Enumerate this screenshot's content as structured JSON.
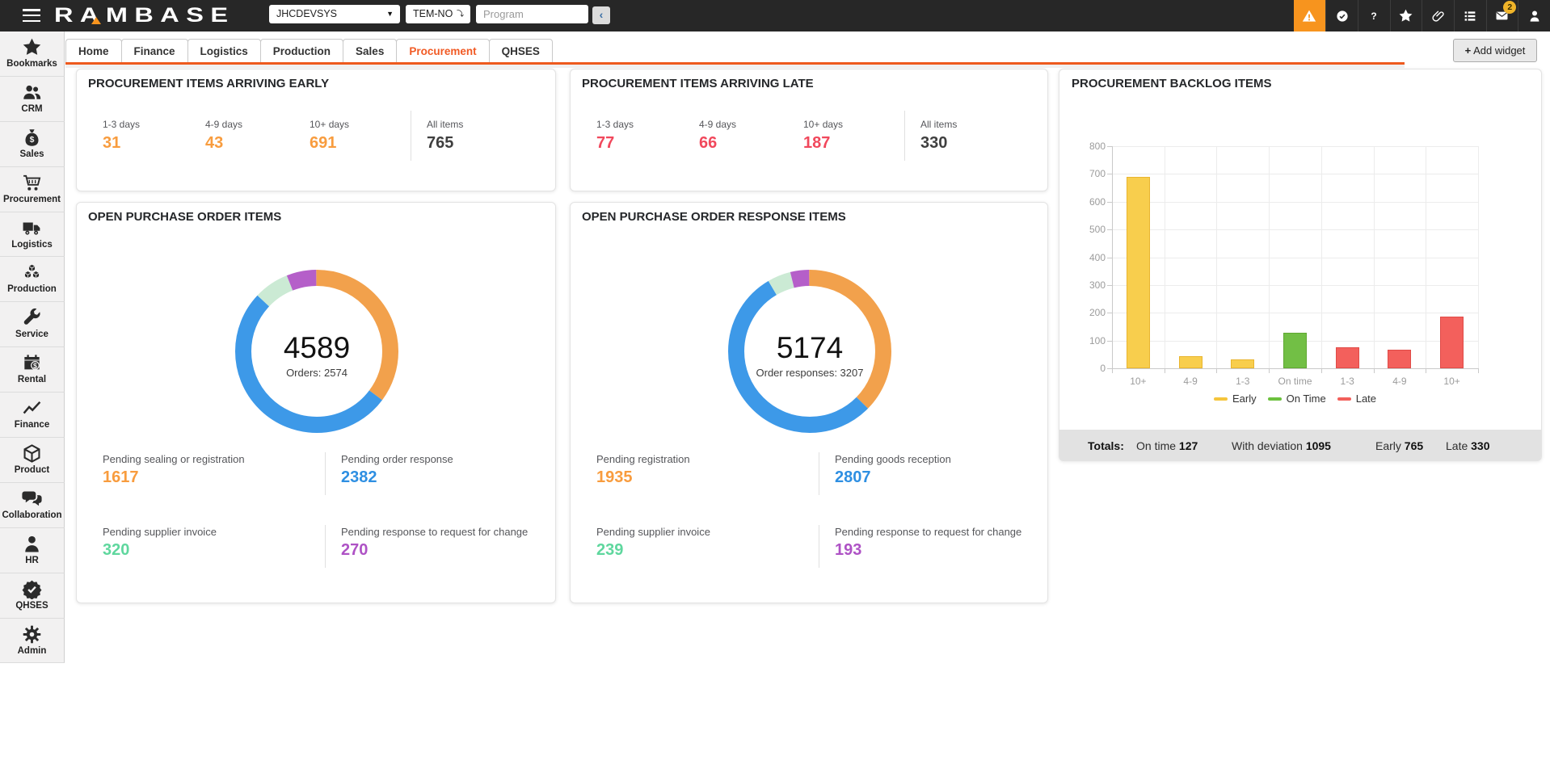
{
  "topbar": {
    "logo": "RAMBASE",
    "system_select": {
      "value": "JHCDEVSYS"
    },
    "db_select": {
      "value": "TEM-NO"
    },
    "program_input": {
      "placeholder": "Program"
    },
    "back_button": "‹",
    "icons": [
      {
        "name": "alert-icon",
        "highlight": true
      },
      {
        "name": "seal-check-icon"
      },
      {
        "name": "help-icon"
      },
      {
        "name": "favorites-icon"
      },
      {
        "name": "attachment-icon"
      },
      {
        "name": "task-list-icon"
      },
      {
        "name": "messages-icon",
        "badge": "2"
      },
      {
        "name": "user-icon"
      }
    ]
  },
  "sidebar": {
    "items": [
      {
        "icon": "star",
        "label": "Bookmarks"
      },
      {
        "icon": "people",
        "label": "CRM"
      },
      {
        "icon": "moneybag",
        "label": "Sales"
      },
      {
        "icon": "cart",
        "label": "Procurement"
      },
      {
        "icon": "truck",
        "label": "Logistics"
      },
      {
        "icon": "cubes",
        "label": "Production"
      },
      {
        "icon": "wrench",
        "label": "Service"
      },
      {
        "icon": "calendar",
        "label": "Rental"
      },
      {
        "icon": "chartline",
        "label": "Finance"
      },
      {
        "icon": "cube",
        "label": "Product"
      },
      {
        "icon": "chat",
        "label": "Collaboration"
      },
      {
        "icon": "person",
        "label": "HR"
      },
      {
        "icon": "badgecheck",
        "label": "QHSES"
      },
      {
        "icon": "gear",
        "label": "Admin"
      }
    ]
  },
  "tabs": {
    "items": [
      "Home",
      "Finance",
      "Logistics",
      "Production",
      "Sales",
      "Procurement",
      "QHSES"
    ],
    "active": "Procurement",
    "add_widget": "Add widget"
  },
  "cards": {
    "early": {
      "title": "PROCUREMENT ITEMS ARRIVING EARLY",
      "stats": [
        {
          "label": "1-3 days",
          "value": "31"
        },
        {
          "label": "4-9 days",
          "value": "43"
        },
        {
          "label": "10+ days",
          "value": "691"
        }
      ],
      "accent": "#f89c3e",
      "all_items": {
        "label": "All items",
        "value": "765"
      }
    },
    "late": {
      "title": "PROCUREMENT ITEMS ARRIVING LATE",
      "stats": [
        {
          "label": "1-3 days",
          "value": "77"
        },
        {
          "label": "4-9 days",
          "value": "66"
        },
        {
          "label": "10+ days",
          "value": "187"
        }
      ],
      "accent": "#f1485c",
      "all_items": {
        "label": "All items",
        "value": "330"
      }
    }
  },
  "chart_data": [
    {
      "type": "pie",
      "title": "OPEN PURCHASE ORDER ITEMS",
      "center_label": "4589",
      "center_sub": "Orders: 2574",
      "slices": [
        {
          "label": "Pending sealing or registration",
          "value": 1617,
          "ring_color": "#f2a14c",
          "text_color": "#f89c3e"
        },
        {
          "label": "Pending order response",
          "value": 2382,
          "ring_color": "#3d99e8",
          "text_color": "#2e8fe2"
        },
        {
          "label": "Pending supplier invoice",
          "value": 320,
          "ring_color": "#cbead4",
          "text_color": "#5fd79e"
        },
        {
          "label": "Pending response to request for change",
          "value": 270,
          "ring_color": "#b55fc9",
          "text_color": "#ae52c5"
        }
      ]
    },
    {
      "type": "pie",
      "title": "OPEN PURCHASE ORDER RESPONSE ITEMS",
      "center_label": "5174",
      "center_sub": "Order responses: 3207",
      "slices": [
        {
          "label": "Pending registration",
          "value": 1935,
          "ring_color": "#f2a14c",
          "text_color": "#f89c3e"
        },
        {
          "label": "Pending goods reception",
          "value": 2807,
          "ring_color": "#3d99e8",
          "text_color": "#2e8fe2"
        },
        {
          "label": "Pending supplier invoice",
          "value": 239,
          "ring_color": "#cbead4",
          "text_color": "#5fd79e"
        },
        {
          "label": "Pending response to request for change",
          "value": 193,
          "ring_color": "#b55fc9",
          "text_color": "#ae52c5"
        }
      ]
    },
    {
      "type": "bar",
      "title": "PROCUREMENT BACKLOG ITEMS",
      "categories": [
        "10+",
        "4-9",
        "1-3",
        "On time",
        "1-3",
        "4-9",
        "10+"
      ],
      "values": [
        691,
        43,
        31,
        127,
        77,
        66,
        187
      ],
      "bar_colors": [
        "#f8ce4d",
        "#f8ce4d",
        "#f8ce4d",
        "#72bf45",
        "#f3605c",
        "#f3605c",
        "#f3605c"
      ],
      "bar_borders": [
        "#e9b52f",
        "#e9b52f",
        "#e9b52f",
        "#5fa832",
        "#e04b47",
        "#e04b47",
        "#e04b47"
      ],
      "ylim": [
        0,
        800
      ],
      "ytick_step": 100,
      "legend": [
        {
          "label": "Early",
          "color": "#f5c53c"
        },
        {
          "label": "On Time",
          "color": "#6cc13e"
        },
        {
          "label": "Late",
          "color": "#f25f5b"
        }
      ],
      "totals": {
        "heading": "Totals:",
        "items": [
          {
            "label": "On time",
            "value": "127"
          },
          {
            "label": "With deviation",
            "value": "1095"
          },
          {
            "label": "Early",
            "value": "765"
          },
          {
            "label": "Late",
            "value": "330"
          }
        ]
      }
    }
  ]
}
